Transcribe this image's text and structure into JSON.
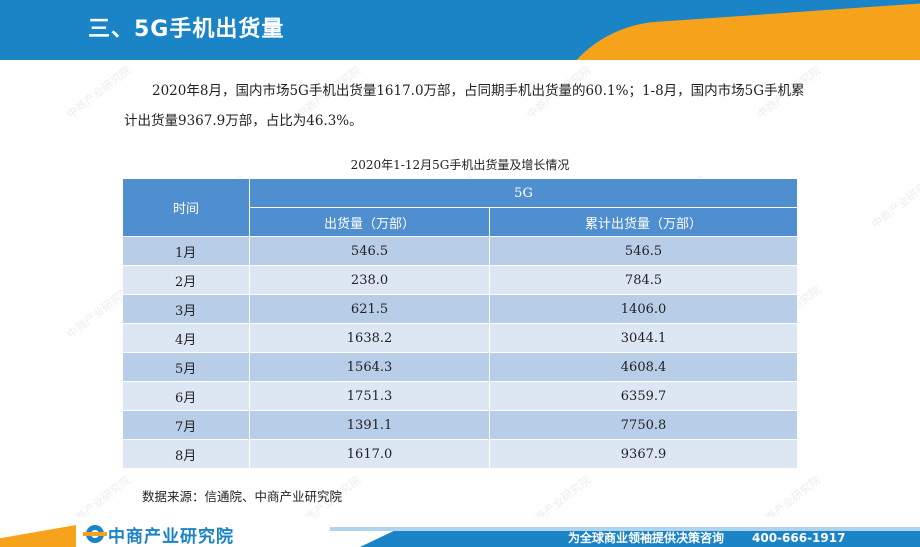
{
  "header": {
    "title": "三、5G手机出货量"
  },
  "paragraph": {
    "text": "2020年8月，国内市场5G手机出货量1617.0万部，占同期手机出货量的60.1%；1-8月，国内市场5G手机累计出货量9367.9万部，占比为46.3%。"
  },
  "table": {
    "caption": "2020年1-12月5G手机出货量及增长情况",
    "header_time": "时间",
    "header_group": "5G",
    "header_shipment": "出货量（万部）",
    "header_cumulative": "累计出货量（万部）",
    "rows": [
      {
        "month": "1月",
        "shipment": "546.5",
        "cumulative": "546.5"
      },
      {
        "month": "2月",
        "shipment": "238.0",
        "cumulative": "784.5"
      },
      {
        "month": "3月",
        "shipment": "621.5",
        "cumulative": "1406.0"
      },
      {
        "month": "4月",
        "shipment": "1638.2",
        "cumulative": "3044.1"
      },
      {
        "month": "5月",
        "shipment": "1564.3",
        "cumulative": "4608.4"
      },
      {
        "month": "6月",
        "shipment": "1751.3",
        "cumulative": "6359.7"
      },
      {
        "month": "7月",
        "shipment": "1391.1",
        "cumulative": "7750.8"
      },
      {
        "month": "8月",
        "shipment": "1617.0",
        "cumulative": "9367.9"
      }
    ]
  },
  "source": "数据来源：信通院、中商产业研究院",
  "footer": {
    "logo_text": "中商产业研究院",
    "slogan": "为全球商业领袖提供决策咨询",
    "phone": "400-666-1917"
  },
  "watermark_text": "中商产业研究院",
  "colors": {
    "brand_blue": "#1b84c6",
    "brand_orange": "#f7a21b",
    "table_header": "#4f8fd0",
    "row_odd": "#b8cde8",
    "row_even": "#dde7f4"
  }
}
